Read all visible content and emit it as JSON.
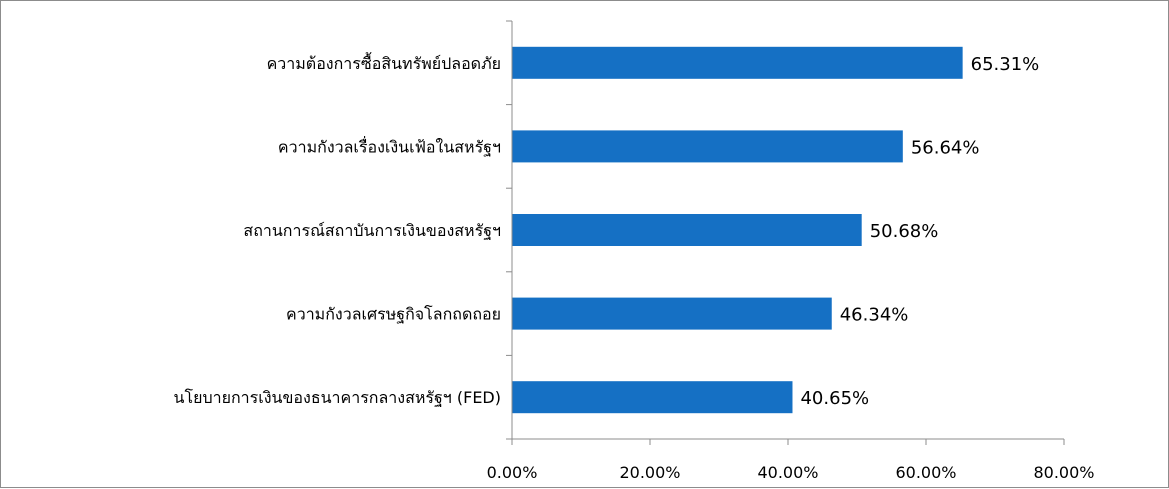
{
  "chart_data": {
    "type": "bar",
    "orientation": "horizontal",
    "categories": [
      "ความต้องการซื้อสินทรัพย์ปลอดภัย",
      "ความกังวลเรื่องเงินเฟ้อในสหรัฐฯ",
      "สถานการณ์สถาบันการเงินของสหรัฐฯ",
      "ความกังวลเศรษฐกิจโลกถดถอย",
      "นโยบายการเงินของธนาคารกลางสหรัฐฯ (FED)"
    ],
    "values": [
      65.31,
      56.64,
      50.68,
      46.34,
      40.65
    ],
    "data_labels": [
      "65.31%",
      "56.64%",
      "50.68%",
      "46.34%",
      "40.65%"
    ],
    "xlim": [
      0,
      80
    ],
    "x_ticks": [
      0,
      20,
      40,
      60,
      80
    ],
    "x_tick_labels": [
      "0.00%",
      "20.00%",
      "40.00%",
      "60.00%",
      "80.00%"
    ],
    "title": "",
    "xlabel": "",
    "ylabel": "",
    "grid": false,
    "legend": "none",
    "bar_color": "#1570C4",
    "axis_color": "#8C8C8C"
  }
}
